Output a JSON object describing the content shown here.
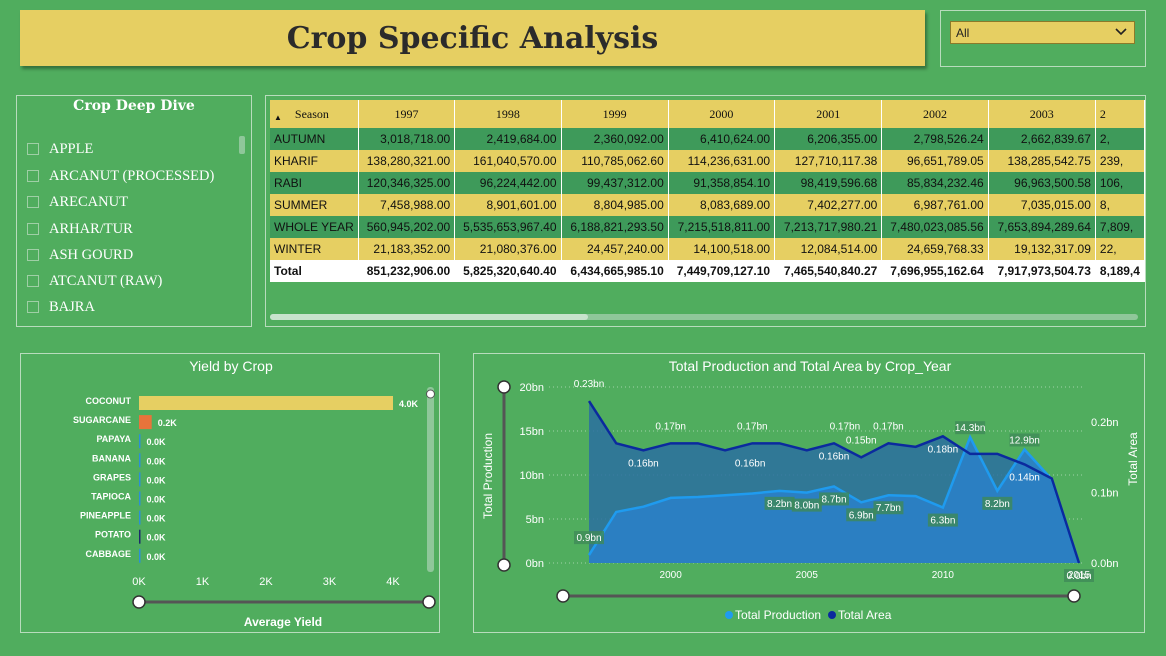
{
  "header": {
    "title": "Crop Specific Analysis"
  },
  "filter": {
    "selected": "All"
  },
  "slicer": {
    "title": "Crop Deep Dive",
    "items": [
      "APPLE",
      "ARCANUT (PROCESSED)",
      "ARECANUT",
      "ARHAR/TUR",
      "ASH GOURD",
      "ATCANUT (RAW)",
      "BAJRA"
    ]
  },
  "matrix": {
    "corner": "Season",
    "columns": [
      "1997",
      "1998",
      "1999",
      "2000",
      "2001",
      "2002",
      "2003",
      "2"
    ],
    "rows": [
      {
        "label": "AUTUMN",
        "values": [
          "3,018,718.00",
          "2,419,684.00",
          "2,360,092.00",
          "6,410,624.00",
          "6,206,355.00",
          "2,798,526.24",
          "2,662,839.67",
          "2,"
        ]
      },
      {
        "label": "KHARIF",
        "values": [
          "138,280,321.00",
          "161,040,570.00",
          "110,785,062.60",
          "114,236,631.00",
          "127,710,117.38",
          "96,651,789.05",
          "138,285,542.75",
          "239,"
        ]
      },
      {
        "label": "RABI",
        "values": [
          "120,346,325.00",
          "96,224,442.00",
          "99,437,312.00",
          "91,358,854.10",
          "98,419,596.68",
          "85,834,232.46",
          "96,963,500.58",
          "106,"
        ]
      },
      {
        "label": "SUMMER",
        "values": [
          "7,458,988.00",
          "8,901,601.00",
          "8,804,985.00",
          "8,083,689.00",
          "7,402,277.00",
          "6,987,761.00",
          "7,035,015.00",
          "8,"
        ]
      },
      {
        "label": "WHOLE YEAR",
        "values": [
          "560,945,202.00",
          "5,535,653,967.40",
          "6,188,821,293.50",
          "7,215,518,811.00",
          "7,213,717,980.21",
          "7,480,023,085.56",
          "7,653,894,289.64",
          "7,809,"
        ]
      },
      {
        "label": "WINTER",
        "values": [
          "21,183,352.00",
          "21,080,376.00",
          "24,457,240.00",
          "14,100,518.00",
          "12,084,514.00",
          "24,659,768.33",
          "19,132,317.09",
          "22,"
        ]
      }
    ],
    "total": {
      "label": "Total",
      "values": [
        "851,232,906.00",
        "5,825,320,640.40",
        "6,434,665,985.10",
        "7,449,709,127.10",
        "7,465,540,840.27",
        "7,696,955,162.64",
        "7,917,973,504.73",
        "8,189,4"
      ]
    }
  },
  "chart_data": [
    {
      "type": "bar",
      "title": "Yield by Crop",
      "xlabel": "Average Yield",
      "ylabel": "",
      "categories": [
        "COCONUT",
        "SUGARCANE",
        "PAPAYA",
        "BANANA",
        "GRAPES",
        "TAPIOCA",
        "PINEAPPLE",
        "POTATO",
        "CABBAGE"
      ],
      "values": [
        4000,
        200,
        0,
        0,
        0,
        0,
        0,
        0,
        0
      ],
      "data_labels": [
        "4.0K",
        "0.2K",
        "0.0K",
        "0.0K",
        "0.0K",
        "0.0K",
        "0.0K",
        "0.0K",
        "0.0K"
      ],
      "bar_colors": [
        "#e6cf62",
        "#e8743b",
        "#2c8fd6",
        "#2c8fd6",
        "#2c8fd6",
        "#2c8fd6",
        "#2c8fd6",
        "#1b2a6b",
        "#2c8fd6"
      ],
      "xticks": [
        "0K",
        "1K",
        "2K",
        "3K",
        "4K"
      ],
      "xlim": [
        0,
        4000
      ]
    },
    {
      "type": "area",
      "title": "Total Production and Total Area by Crop_Year",
      "x": [
        1997,
        1998,
        1999,
        2000,
        2001,
        2002,
        2003,
        2004,
        2005,
        2006,
        2007,
        2008,
        2009,
        2010,
        2011,
        2012,
        2013,
        2014,
        2015
      ],
      "series": [
        {
          "name": "Total Production",
          "axis": "left",
          "color": "#1f9bef",
          "values": [
            0.9,
            5.8,
            6.4,
            7.4,
            7.5,
            7.7,
            7.9,
            8.2,
            8.0,
            8.7,
            6.9,
            7.7,
            7.6,
            6.3,
            14.3,
            8.2,
            12.9,
            9.5,
            0.0
          ]
        },
        {
          "name": "Total Area",
          "axis": "right",
          "color": "#0b2a9e",
          "values": [
            0.23,
            0.17,
            0.16,
            0.17,
            0.17,
            0.16,
            0.17,
            0.17,
            0.16,
            0.17,
            0.15,
            0.17,
            0.165,
            0.18,
            0.155,
            0.155,
            0.14,
            0.12,
            0.0
          ]
        }
      ],
      "labels_production": [
        "0.9bn",
        "8.2bn",
        "8.0bn",
        "8.7bn",
        "6.9bn",
        "7.7bn",
        "6.3bn",
        "14.3bn",
        "8.2bn",
        "12.9bn",
        "0.0bn"
      ],
      "labels_area": [
        "0.23bn",
        "0.17bn",
        "0.16bn",
        "0.17bn",
        "0.16bn",
        "0.16bn",
        "0.17bn",
        "0.15bn",
        "0.17bn",
        "0.18bn",
        "0.14bn"
      ],
      "ylabel": "Total Production",
      "y2label": "Total Area",
      "ylim": [
        0,
        20
      ],
      "y2lim": [
        0,
        0.25
      ],
      "yticks": [
        "0bn",
        "5bn",
        "10bn",
        "15bn",
        "20bn"
      ],
      "y2ticks": [
        "0.0bn",
        "0.1bn",
        "0.2bn"
      ],
      "xticks": [
        "2000",
        "2005",
        "2010",
        "2015"
      ],
      "legend_position": "bottom"
    }
  ]
}
